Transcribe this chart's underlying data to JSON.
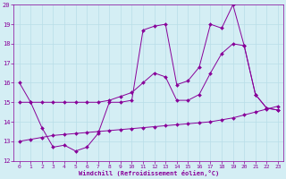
{
  "line1_x": [
    0,
    1,
    2,
    3,
    4,
    5,
    6,
    7,
    8,
    9,
    10,
    11,
    12,
    13,
    14,
    15,
    16,
    17,
    18,
    19,
    20,
    21,
    22,
    23
  ],
  "line1_y": [
    16.0,
    15.0,
    13.7,
    12.7,
    12.8,
    12.5,
    12.7,
    13.4,
    15.0,
    15.0,
    15.1,
    18.7,
    18.9,
    19.0,
    15.9,
    16.1,
    16.8,
    19.0,
    18.8,
    20.0,
    17.9,
    15.4,
    14.7,
    14.6
  ],
  "line2_x": [
    0,
    1,
    2,
    3,
    4,
    5,
    6,
    7,
    8,
    9,
    10,
    11,
    12,
    13,
    14,
    15,
    16,
    17,
    18,
    19,
    20,
    21,
    22,
    23
  ],
  "line2_y": [
    15.0,
    15.0,
    15.0,
    15.0,
    15.0,
    15.0,
    15.0,
    15.0,
    15.1,
    15.3,
    15.5,
    16.0,
    16.5,
    16.3,
    15.1,
    15.1,
    15.4,
    16.5,
    17.5,
    18.0,
    17.9,
    15.4,
    14.7,
    14.6
  ],
  "line3_x": [
    0,
    1,
    2,
    3,
    4,
    5,
    6,
    7,
    8,
    9,
    10,
    11,
    12,
    13,
    14,
    15,
    16,
    17,
    18,
    19,
    20,
    21,
    22,
    23
  ],
  "line3_y": [
    13.0,
    13.1,
    13.2,
    13.3,
    13.35,
    13.4,
    13.45,
    13.5,
    13.55,
    13.6,
    13.65,
    13.7,
    13.75,
    13.8,
    13.85,
    13.9,
    13.95,
    14.0,
    14.1,
    14.2,
    14.35,
    14.5,
    14.65,
    14.8
  ],
  "bg_color": "#d4eef4",
  "line_color": "#880099",
  "grid_color": "#b8dde8",
  "xlabel": "Windchill (Refroidissement éolien,°C)",
  "xlim": [
    -0.5,
    23.5
  ],
  "ylim": [
    12,
    20
  ],
  "yticks": [
    12,
    13,
    14,
    15,
    16,
    17,
    18,
    19,
    20
  ],
  "xticks": [
    0,
    1,
    2,
    3,
    4,
    5,
    6,
    7,
    8,
    9,
    10,
    11,
    12,
    13,
    14,
    15,
    16,
    17,
    18,
    19,
    20,
    21,
    22,
    23
  ]
}
